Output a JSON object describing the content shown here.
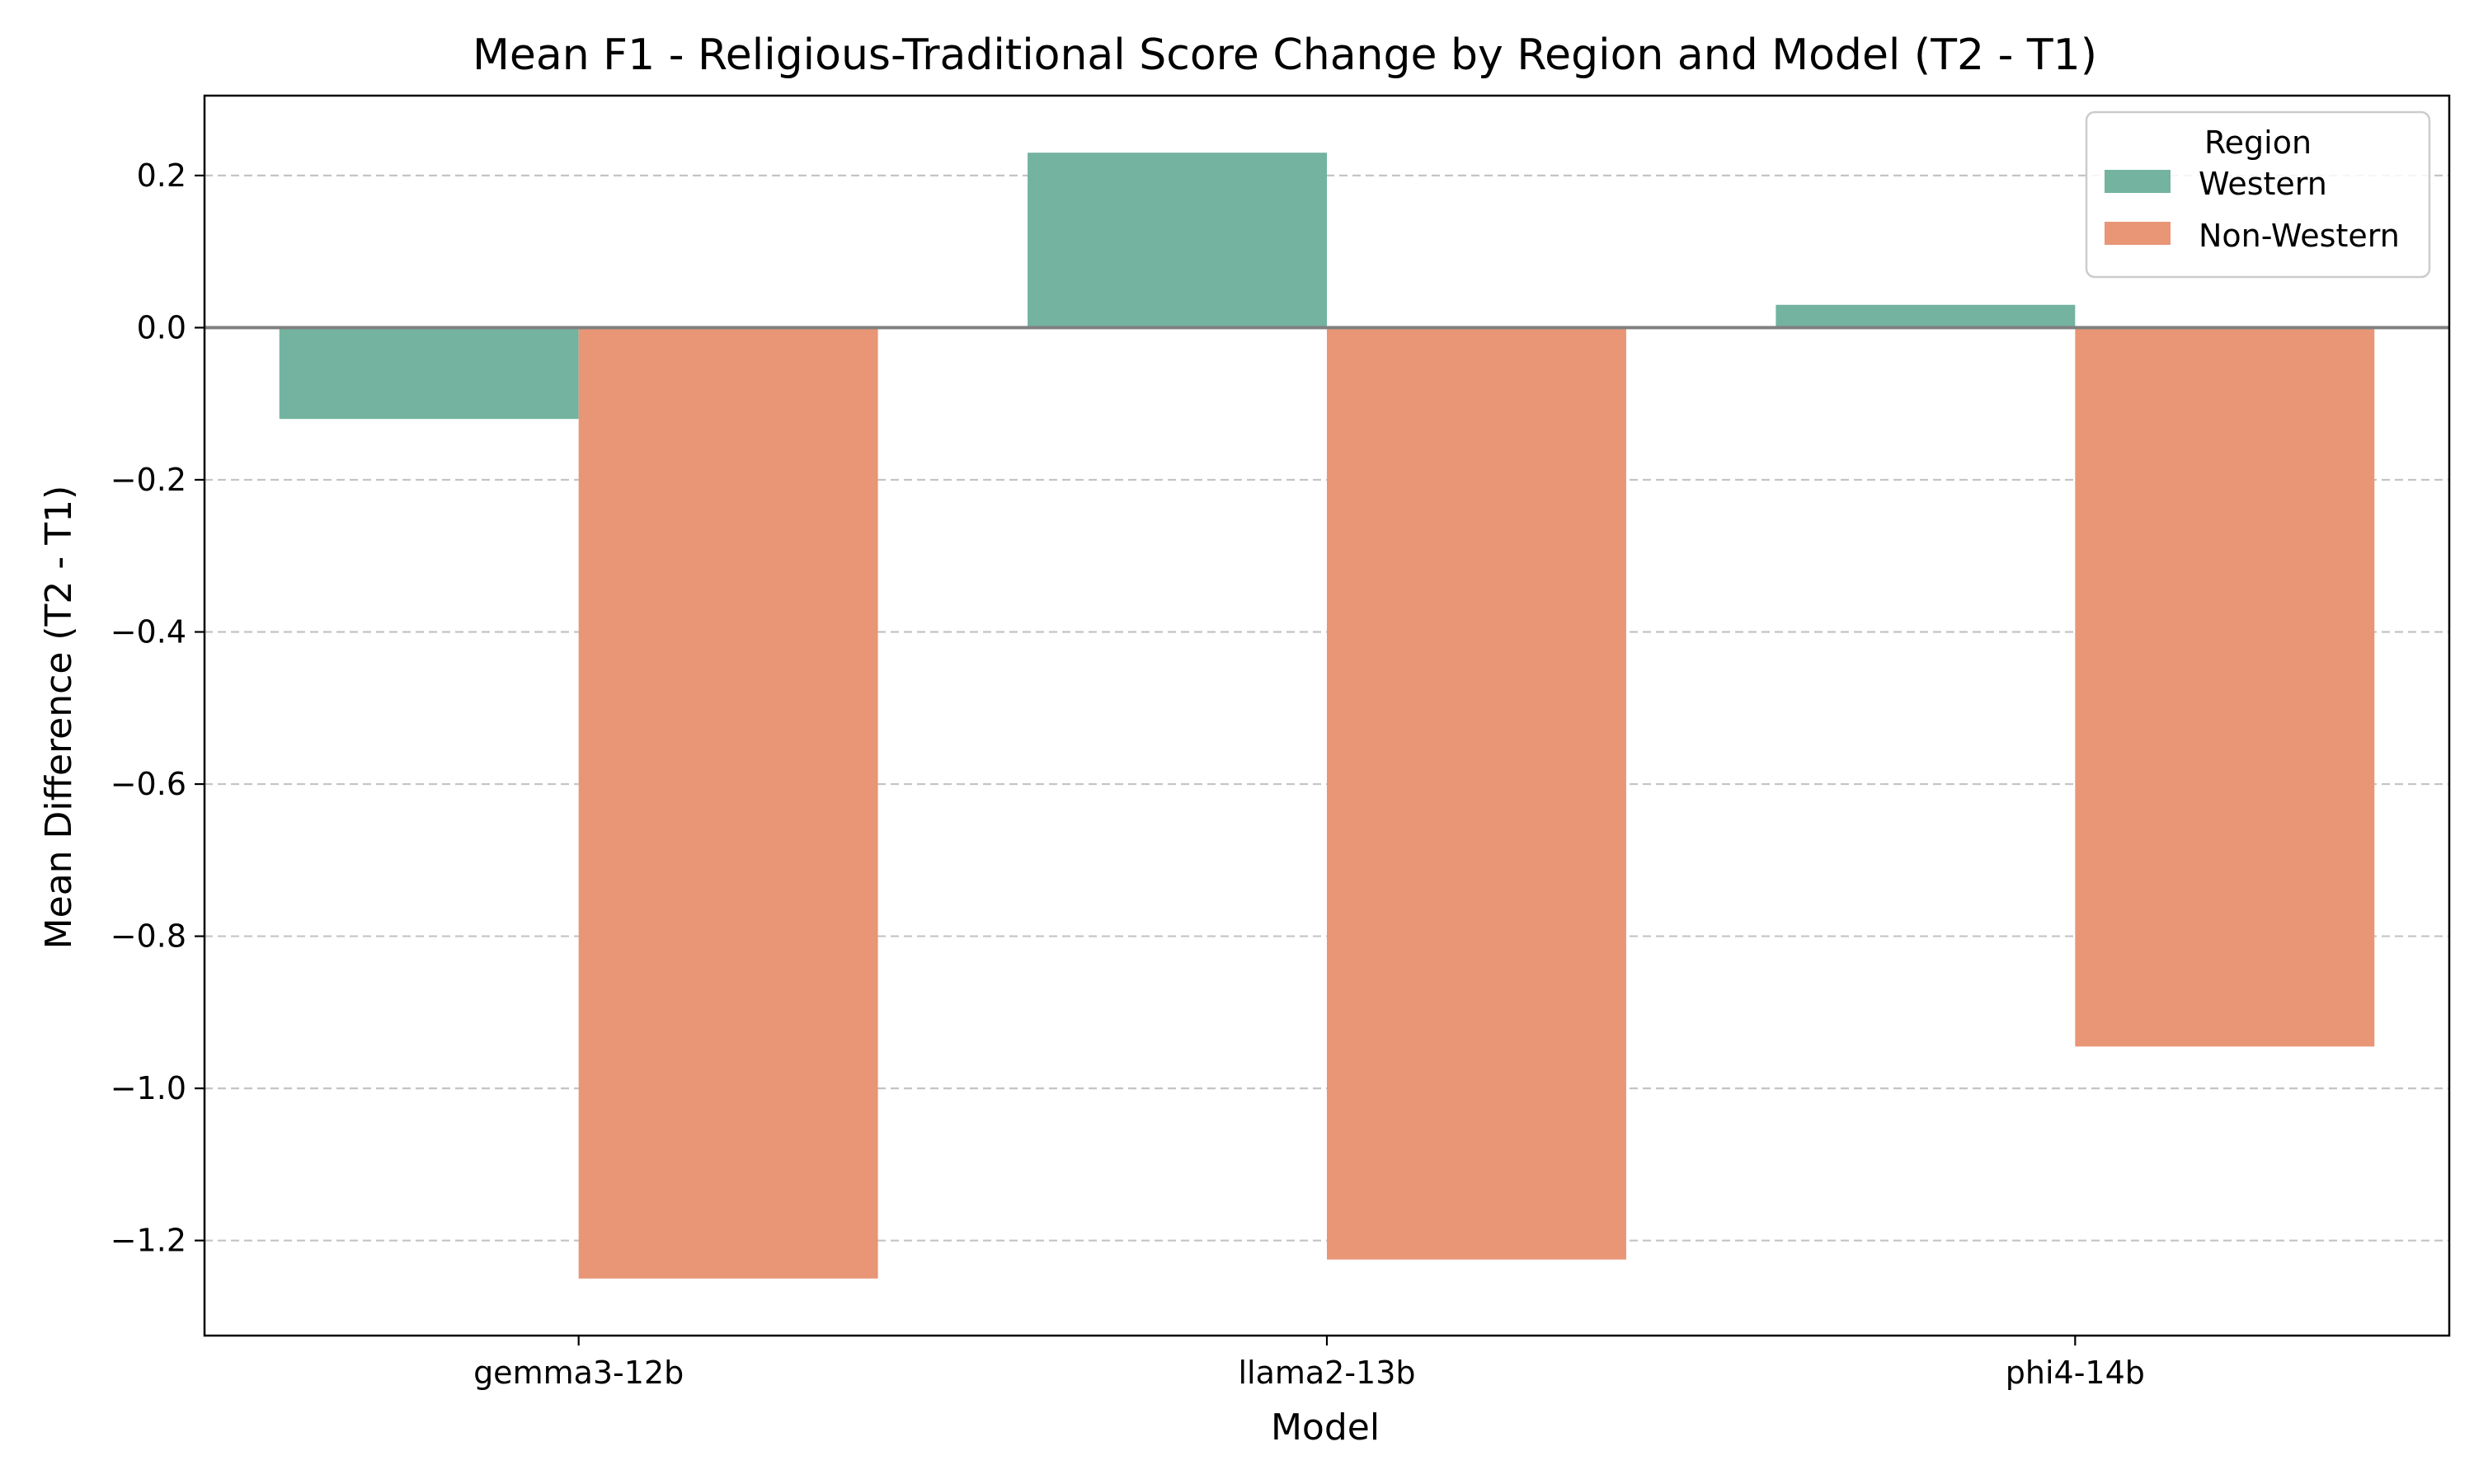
{
  "chart_data": {
    "type": "bar",
    "title": "Mean F1 - Religious-Traditional Score Change by Region and Model (T2 - T1)",
    "xlabel": "Model",
    "ylabel": "Mean Difference (T2 - T1)",
    "categories": [
      "gemma3-12b",
      "llama2-13b",
      "phi4-14b"
    ],
    "series": [
      {
        "name": "Western",
        "color": "#73b39f",
        "values": [
          -0.12,
          0.23,
          0.03
        ]
      },
      {
        "name": "Non-Western",
        "color": "#e89676",
        "values": [
          -1.25,
          -1.225,
          -0.945
        ]
      }
    ],
    "ylim": [
      -1.325,
      0.305
    ],
    "yticks": [
      0.2,
      0.0,
      -0.2,
      -0.4,
      -0.6,
      -0.8,
      -1.0,
      -1.2
    ],
    "ytick_labels": [
      "0.2",
      "0.0",
      "−0.2",
      "−0.4",
      "−0.6",
      "−0.8",
      "−1.0",
      "−1.2"
    ],
    "grid": "y-dashed",
    "zero_line": true,
    "legend": {
      "title": "Region",
      "placement": "top-right"
    }
  }
}
